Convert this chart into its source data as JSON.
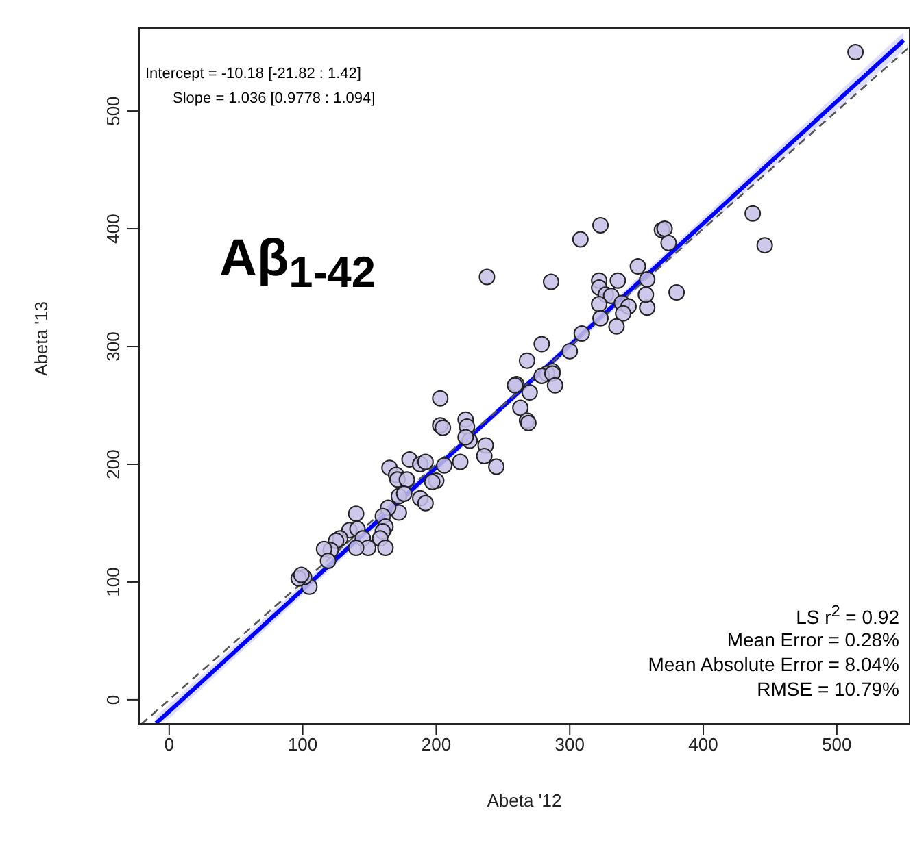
{
  "chart_data": {
    "type": "scatter",
    "xlabel": "Abeta '12",
    "ylabel": "Abeta '13",
    "xlim": [
      -23,
      555
    ],
    "ylim": [
      -21,
      571
    ],
    "xticks": [
      0,
      100,
      200,
      300,
      400,
      500
    ],
    "yticks": [
      0,
      100,
      200,
      300,
      400,
      500
    ],
    "annotations": [
      "Intercept =  -10.18 [-21.82 :  1.42]",
      "Slope =  1.036 [0.9778 : 1.094]",
      "Aβ$_{1-42}$",
      "LS r$^{2}$ =  0.92",
      "Mean Error =  0.28%",
      "Mean Absolute Error =  8.04%",
      "RMSE =  10.79%"
    ],
    "series": [
      {
        "color": "#c5bfe6",
        "marker": "circle",
        "x": [
          514,
          323,
          308,
          369,
          371,
          374,
          437,
          446,
          238,
          286,
          351,
          380,
          322,
          336,
          358,
          322,
          327,
          331,
          322,
          339,
          344,
          358,
          357,
          340,
          323,
          335,
          309,
          300,
          279,
          268,
          287,
          283,
          260,
          203,
          203,
          205,
          259,
          263,
          270,
          268,
          269,
          279,
          287,
          289,
          222,
          223,
          225,
          222,
          218,
          237,
          236,
          245,
          206,
          200,
          197,
          180,
          188,
          192,
          165,
          170,
          171,
          178,
          188,
          192,
          172,
          172,
          176,
          164,
          160,
          162,
          160,
          158,
          162,
          140,
          135,
          141,
          145,
          149,
          140,
          128,
          125,
          121,
          116,
          119,
          105,
          101,
          97,
          99
        ],
        "values": [
          550,
          403,
          391,
          399,
          400,
          388,
          413,
          386,
          359,
          355,
          368,
          346,
          356,
          356,
          357,
          350,
          344,
          343,
          336,
          337,
          334,
          333,
          344,
          328,
          324,
          317,
          311,
          296,
          302,
          288,
          279,
          277,
          268,
          256,
          233,
          231,
          267,
          248,
          261,
          237,
          235,
          275,
          277,
          267,
          238,
          232,
          220,
          223,
          202,
          216,
          207,
          198,
          199,
          186,
          185,
          204,
          200,
          202,
          197,
          191,
          187,
          187,
          171,
          167,
          159,
          173,
          175,
          163,
          156,
          147,
          143,
          137,
          129,
          158,
          144,
          145,
          137,
          129,
          129,
          137,
          135,
          127,
          128,
          118,
          96,
          104,
          103,
          106
        ]
      },
      {
        "type": "line",
        "color": "#0000ff",
        "marker": "none",
        "line_style": "solid",
        "x": [
          -10,
          0,
          250,
          550
        ],
        "values": [
          -20,
          -10,
          249,
          560
        ],
        "lower": [
          -21,
          -16,
          246,
          552
        ],
        "upper": [
          -14,
          -4,
          252,
          567
        ]
      },
      {
        "type": "line",
        "color": "#555555",
        "marker": "none",
        "line_style": "dashed",
        "x": [
          -21,
          555
        ],
        "values": [
          -21,
          555
        ]
      }
    ]
  }
}
